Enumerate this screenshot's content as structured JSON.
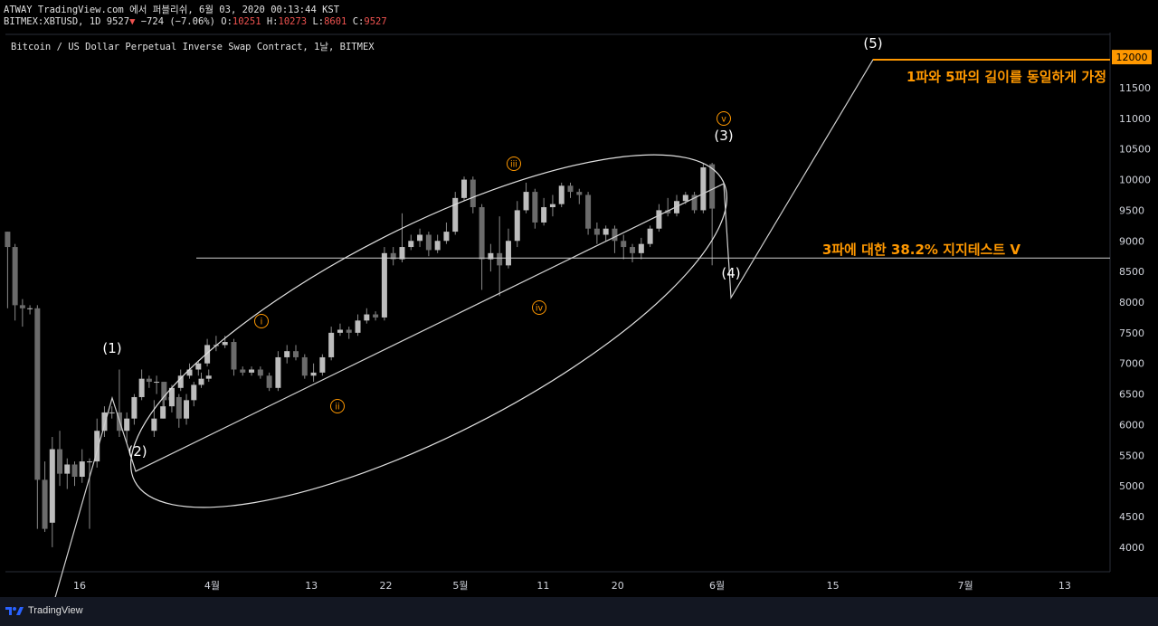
{
  "header": {
    "line1": "ATWAY TradingView.com 에서 퍼블리쉬, 6월 03, 2020 00:13:44 KST",
    "symbol_prefix": "BITMEX:XBTUSD, 1D 9527",
    "change": "−724 (−7.06%)",
    "o_label": "O:",
    "o_value": "10251",
    "h_label": "H:",
    "h_value": "10273",
    "l_label": "L:",
    "l_value": "8601",
    "c_label": "C:",
    "c_value": "9527"
  },
  "chart_title": "Bitcoin / US Dollar Perpetual Inverse Swap Contract, 1날, BITMEX",
  "footer": {
    "brand": "TradingView"
  },
  "chart_data": {
    "type": "candlestick",
    "interval": "1D",
    "ylim": [
      3600,
      12400
    ],
    "y_ticks": [
      4000,
      4500,
      5000,
      5500,
      6000,
      6500,
      7000,
      7500,
      8000,
      8500,
      9000,
      9500,
      10000,
      10500,
      11000,
      11500
    ],
    "current_price_label": "12000",
    "current_price": 12000,
    "x_ticks": [
      {
        "label": "16",
        "day": 0
      },
      {
        "label": "4월",
        "day": 16
      },
      {
        "label": "13",
        "day": 28
      },
      {
        "label": "22",
        "day": 37
      },
      {
        "label": "5월",
        "day": 46
      },
      {
        "label": "11",
        "day": 56
      },
      {
        "label": "20",
        "day": 65
      },
      {
        "label": "6월",
        "day": 77
      },
      {
        "label": "15",
        "day": 91
      },
      {
        "label": "7월",
        "day": 107
      },
      {
        "label": "13",
        "day": 119
      }
    ],
    "candles": [
      [
        9150,
        8900,
        9150,
        7900
      ],
      [
        8900,
        7950,
        8950,
        7700
      ],
      [
        7950,
        7900,
        8050,
        7600
      ],
      [
        7900,
        7900,
        7950,
        7800
      ],
      [
        7900,
        5100,
        7950,
        4300
      ],
      [
        5100,
        4300,
        5400,
        4250
      ],
      [
        4400,
        5600,
        5800,
        4000
      ],
      [
        5600,
        5200,
        5900,
        5000
      ],
      [
        5200,
        5350,
        5450,
        4950
      ],
      [
        5350,
        5150,
        5400,
        5000
      ],
      [
        5150,
        5400,
        5600,
        5050
      ],
      [
        5400,
        5400,
        5450,
        4300
      ],
      [
        5400,
        5900,
        6100,
        5300
      ],
      [
        5900,
        6200,
        6300,
        5800
      ],
      [
        6200,
        6200,
        6300,
        6100
      ],
      [
        6200,
        5900,
        6900,
        5800
      ],
      [
        5900,
        6100,
        6200,
        5700
      ],
      [
        6100,
        6450,
        6500,
        6000
      ],
      [
        6450,
        6750,
        6900,
        6400
      ],
      [
        6750,
        6700,
        6800,
        6600
      ],
      [
        6700,
        6700,
        6800,
        6500
      ],
      [
        6700,
        6400,
        6700,
        6300
      ],
      [
        6400,
        6450,
        6600,
        6300
      ],
      [
        6450,
        6100,
        6500,
        5950
      ],
      [
        6100,
        6400,
        6500,
        6000
      ],
      [
        6400,
        6650,
        6700,
        6300
      ],
      [
        6650,
        6750,
        6850,
        6600
      ],
      [
        6750,
        6800,
        6900,
        6700
      ]
    ],
    "extra_candles": [
      [
        5900,
        6100,
        6400,
        5800
      ],
      [
        6100,
        6300,
        6400,
        6100
      ],
      [
        6300,
        6600,
        6650,
        6200
      ],
      [
        6600,
        6800,
        6900,
        6550
      ],
      [
        6800,
        6900,
        7000,
        6750
      ],
      [
        6900,
        7000,
        7050,
        6800
      ],
      [
        7000,
        7300,
        7400,
        6950
      ],
      [
        7300,
        7300,
        7450,
        7200
      ],
      [
        7300,
        7350,
        7450,
        7250
      ],
      [
        7350,
        6900,
        7400,
        6800
      ],
      [
        6900,
        6850,
        6950,
        6800
      ],
      [
        6850,
        6900,
        6950,
        6800
      ],
      [
        6900,
        6800,
        6950,
        6750
      ],
      [
        6800,
        6600,
        6850,
        6550
      ],
      [
        6600,
        7100,
        7200,
        6550
      ],
      [
        7100,
        7200,
        7300,
        7000
      ],
      [
        7200,
        7100,
        7300,
        7050
      ],
      [
        7100,
        6800,
        7150,
        6750
      ],
      [
        6800,
        6850,
        7000,
        6700
      ],
      [
        6850,
        7100,
        7150,
        6800
      ],
      [
        7100,
        7500,
        7600,
        7050
      ],
      [
        7500,
        7550,
        7650,
        7450
      ],
      [
        7550,
        7500,
        7600,
        7400
      ],
      [
        7500,
        7700,
        7800,
        7450
      ],
      [
        7700,
        7800,
        7900,
        7650
      ],
      [
        7800,
        7750,
        7850,
        7700
      ],
      [
        7750,
        8800,
        8900,
        7700
      ],
      [
        8800,
        8700,
        8900,
        8600
      ],
      [
        8700,
        8900,
        9450,
        8650
      ],
      [
        8900,
        9000,
        9100,
        8850
      ],
      [
        9000,
        9100,
        9200,
        8900
      ],
      [
        9100,
        8850,
        9150,
        8750
      ],
      [
        8850,
        9000,
        9100,
        8800
      ],
      [
        9000,
        9150,
        9300,
        8950
      ],
      [
        9150,
        9700,
        9800,
        9100
      ],
      [
        9700,
        10000,
        10050,
        9650
      ],
      [
        10000,
        9550,
        10050,
        9450
      ],
      [
        9550,
        8700,
        9600,
        8200
      ],
      [
        8700,
        8800,
        8950,
        8500
      ],
      [
        8800,
        8600,
        9400,
        8100
      ],
      [
        8600,
        9000,
        9200,
        8550
      ],
      [
        9000,
        9500,
        9650,
        8900
      ],
      [
        9500,
        9800,
        9950,
        9450
      ],
      [
        9800,
        9300,
        9850,
        9200
      ],
      [
        9300,
        9550,
        9700,
        9250
      ],
      [
        9550,
        9600,
        9750,
        9400
      ],
      [
        9600,
        9900,
        9950,
        9550
      ],
      [
        9900,
        9800,
        9950,
        9700
      ],
      [
        9800,
        9750,
        9850,
        9600
      ],
      [
        9750,
        9200,
        9800,
        9100
      ],
      [
        9200,
        9100,
        9300,
        8950
      ],
      [
        9100,
        9200,
        9250,
        9000
      ],
      [
        9200,
        9000,
        9250,
        8800
      ],
      [
        9000,
        8900,
        9100,
        8700
      ],
      [
        8900,
        8800,
        8950,
        8650
      ],
      [
        8800,
        8950,
        9050,
        8700
      ],
      [
        8950,
        9200,
        9250,
        8900
      ],
      [
        9200,
        9500,
        9600,
        9150
      ],
      [
        9500,
        9450,
        9700,
        9400
      ],
      [
        9450,
        9650,
        9750,
        9400
      ],
      [
        9650,
        9750,
        9800,
        9600
      ],
      [
        9750,
        9500,
        9800,
        9450
      ],
      [
        9500,
        10200,
        10273,
        9450
      ],
      [
        10251,
        9527,
        10273,
        8601
      ]
    ],
    "wave_labels": [
      {
        "text": "(1)",
        "day": 14,
        "price": 7050
      },
      {
        "text": "(2)",
        "day": 18,
        "price": 5400
      },
      {
        "text": "(3)",
        "day": 77,
        "price": 10750
      },
      {
        "text": "(4)",
        "day": 78,
        "price": 8400
      },
      {
        "text": "(5)",
        "day": 95,
        "price": 12200
      }
    ],
    "subwave_labels": [
      {
        "text": "i",
        "day": 32,
        "price": 7700
      },
      {
        "text": "ii",
        "day": 42,
        "price": 6300
      },
      {
        "text": "iii",
        "day": 59,
        "price": 10300
      },
      {
        "text": "iv",
        "day": 66,
        "price": 7900
      },
      {
        "text": "v",
        "day": 90,
        "price": 11050
      }
    ],
    "annotations": [
      {
        "text": "1파와 5파의 길이를 동일하게 가정",
        "day": 100,
        "price": 11700
      },
      {
        "text": "3파에 대한 38.2% 지지테스트 V",
        "day": 91,
        "price": 8880
      }
    ],
    "support_line_price": 8720
  }
}
